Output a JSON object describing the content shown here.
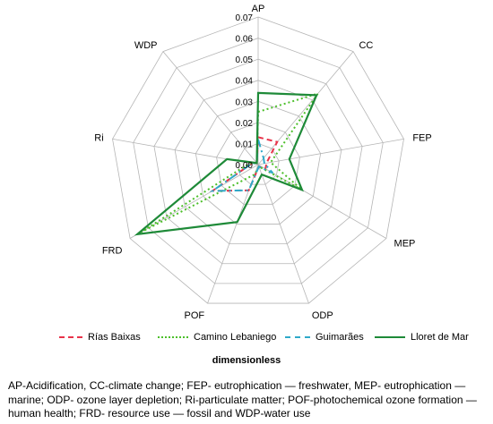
{
  "chart_data": {
    "type": "radar",
    "axes": [
      "AP",
      "CC",
      "FEP",
      "MEP",
      "ODP",
      "POF",
      "FRD",
      "Ri",
      "WDP"
    ],
    "rlim": [
      0,
      0.07
    ],
    "rticks": [
      "0.00",
      "0.01",
      "0.02",
      "0.03",
      "0.04",
      "0.05",
      "0.06",
      "0.07"
    ],
    "grid": true,
    "legend_position": "bottom",
    "series": [
      {
        "name": "Rías Baixas",
        "color": "#e8334a",
        "dash": "dashed",
        "values": [
          0.013,
          0.014,
          0.004,
          0.004,
          0.001,
          0.013,
          0.025,
          0.003,
          0.001
        ]
      },
      {
        "name": "Camino Lebaniego",
        "color": "#4cbf2a",
        "dash": "dotted",
        "values": [
          0.025,
          0.044,
          0.006,
          0.024,
          0.001,
          0.005,
          0.064,
          0.004,
          0.001
        ]
      },
      {
        "name": "Guimarães",
        "color": "#2fa9c9",
        "dash": "dashdot",
        "values": [
          0.012,
          0.004,
          0.003,
          0.008,
          0.001,
          0.013,
          0.025,
          0.003,
          0.001
        ]
      },
      {
        "name": "Lloret de Mar",
        "color": "#1e8a38",
        "dash": "solid",
        "values": [
          0.034,
          0.043,
          0.015,
          0.024,
          0.005,
          0.029,
          0.066,
          0.015,
          0.001
        ]
      }
    ],
    "xlabel": "dimensionless"
  },
  "caption": "AP-Acidification, CC-climate change; FEP- eutrophication — freshwater, MEP- eutrophication — marine; ODP- ozone layer depletion; Ri-particulate matter; POF-photochemical ozone formation — human health; FRD- resource use — fossil and WDP-water use"
}
